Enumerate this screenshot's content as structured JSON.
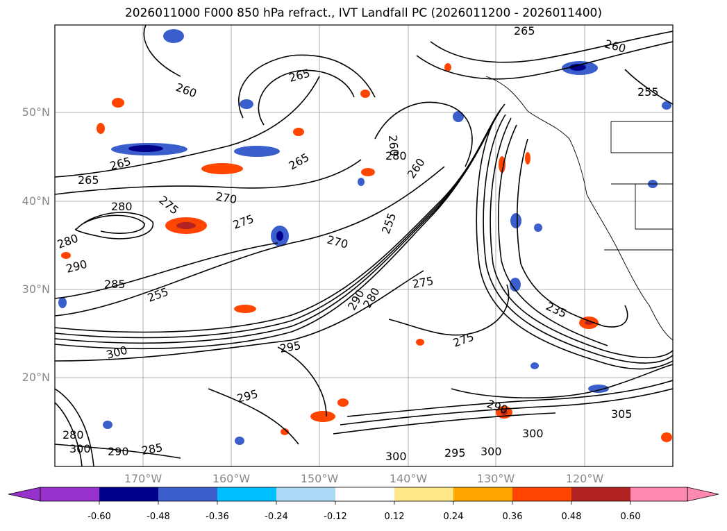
{
  "title": "2026011000 F000 850 hPa refract., IVT Landfall PC (2026011200 - 2026011400)",
  "map": {
    "lat_labels": [
      "50°N",
      "40°N",
      "30°N",
      "20°N"
    ],
    "lon_labels": [
      "170°W",
      "160°W",
      "150°W",
      "140°W",
      "130°W",
      "120°W"
    ],
    "contour_labels": [
      "265",
      "260",
      "265",
      "275",
      "270",
      "275",
      "280",
      "280",
      "290",
      "285",
      "255",
      "265",
      "260",
      "265",
      "260",
      "255",
      "270",
      "275",
      "290",
      "280",
      "295",
      "300",
      "295",
      "280",
      "235",
      "275",
      "290",
      "300",
      "300",
      "295",
      "300",
      "285",
      "280",
      "290",
      "300",
      "305",
      "265",
      "260",
      "255"
    ]
  },
  "colorbar": {
    "ticks": [
      "-0.60",
      "-0.48",
      "-0.36",
      "-0.24",
      "-0.12",
      "0.12",
      "0.24",
      "0.36",
      "0.48",
      "0.60"
    ],
    "colors": [
      "#9932cc",
      "#00008b",
      "#3a5fcd",
      "#00bfff",
      "#add8f7",
      "#ffffff",
      "#ffe78a",
      "#ffa500",
      "#ff4500",
      "#b22222",
      "#ff88b0"
    ]
  }
}
